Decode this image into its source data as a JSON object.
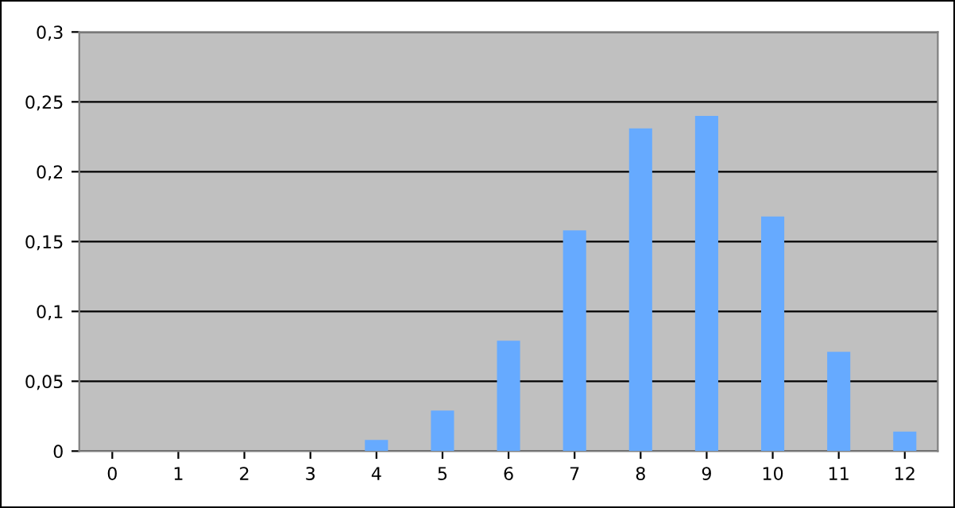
{
  "chart_data": {
    "type": "bar",
    "categories": [
      "0",
      "1",
      "2",
      "3",
      "4",
      "5",
      "6",
      "7",
      "8",
      "9",
      "10",
      "11",
      "12"
    ],
    "values": [
      0,
      0,
      0,
      0,
      0.008,
      0.029,
      0.079,
      0.158,
      0.231,
      0.24,
      0.168,
      0.071,
      0.014
    ],
    "color": "#66aaff",
    "ylim": [
      0,
      0.3
    ],
    "yticks": [
      {
        "value": 0,
        "label": "0"
      },
      {
        "value": 0.05,
        "label": "0,05"
      },
      {
        "value": 0.1,
        "label": "0,1"
      },
      {
        "value": 0.15,
        "label": "0,15"
      },
      {
        "value": 0.2,
        "label": "0,2"
      },
      {
        "value": 0.25,
        "label": "0,25"
      },
      {
        "value": 0.3,
        "label": "0,3"
      }
    ],
    "grid": "y"
  }
}
